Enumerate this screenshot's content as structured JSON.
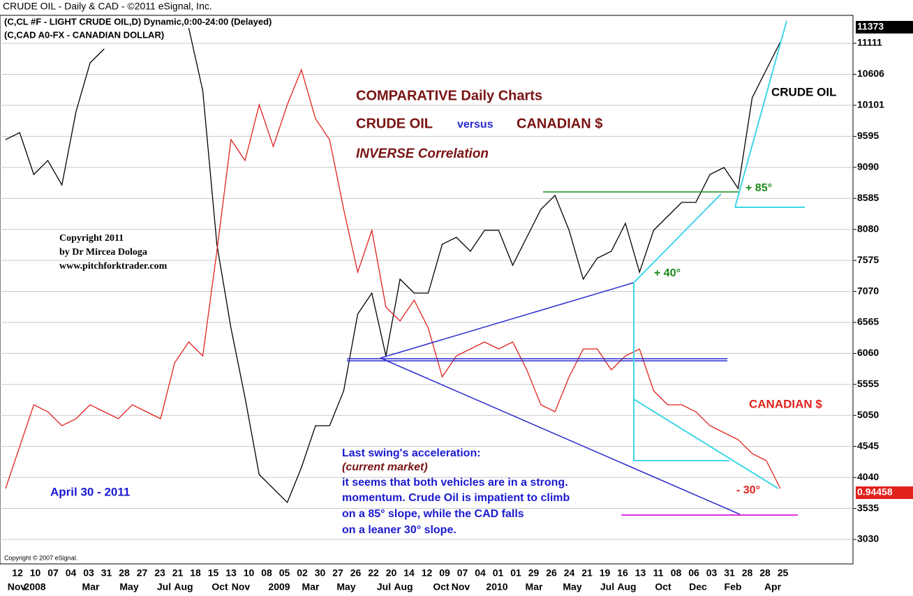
{
  "chart_data": {
    "type": "line",
    "header": "CRUDE OIL - Daily & CAD - ©2011 eSignal, Inc.",
    "series": [
      {
        "name": "(C,CL #F - LIGHT CRUDE OIL,D) Dynamic,0:00-24:00 (Delayed)",
        "color": "#000000",
        "values": [
          9542,
          9656,
          8974,
          9201,
          8804,
          9997,
          10793,
          11020,
          null,
          null,
          null,
          null,
          null,
          11361,
          10338,
          7838,
          6474,
          5337,
          4087,
          3860,
          3633,
          4200,
          4882,
          4882,
          5451,
          6701,
          7042,
          6019,
          7269,
          7042,
          7042,
          7838,
          7951,
          7724,
          8065,
          8065,
          7497,
          7951,
          8406,
          8633,
          8065,
          7269,
          7610,
          7724,
          8179,
          7383,
          8065,
          8292,
          8520,
          8520,
          8974,
          9088,
          8747,
          10224,
          10679,
          11134
        ]
      },
      {
        "name": "(C,CAD A0-FX - CANADIAN DOLLAR)",
        "color": "#e0221b",
        "values": [
          3860,
          4541,
          5223,
          5110,
          4882,
          4996,
          5223,
          5110,
          4996,
          5223,
          5110,
          4996,
          5905,
          6246,
          6019,
          7724,
          9542,
          9201,
          10111,
          9429,
          10111,
          10679,
          9883,
          9542,
          8406,
          7383,
          8065,
          6815,
          6587,
          6928,
          6474,
          5678,
          6019,
          6133,
          6246,
          6133,
          6246,
          5792,
          5223,
          5110,
          5678,
          6133,
          6133,
          5792,
          6019,
          6133,
          5451,
          5223,
          5223,
          5110,
          4882,
          4769,
          4655,
          4428,
          4314,
          3860
        ]
      }
    ],
    "last_values": [
      11373,
      0.94458
    ],
    "ylim": [
      2632,
      11566
    ],
    "yticks": [
      3030,
      3535,
      4040,
      4545,
      5050,
      5555,
      6060,
      6565,
      7070,
      7575,
      8080,
      8585,
      9090,
      9595,
      10101,
      10606,
      11111
    ],
    "grid": true,
    "x_day_labels": [
      "12",
      "10",
      "07",
      "04",
      "03",
      "31",
      "28",
      "27",
      "23",
      "21",
      "18",
      "15",
      "13",
      "10",
      "08",
      "05",
      "02",
      "30",
      "27",
      "26",
      "22",
      "20",
      "14",
      "12",
      "09",
      "07",
      "04",
      "01",
      "01",
      "29",
      "26",
      "24",
      "21",
      "19",
      "16",
      "13",
      "11",
      "08",
      "06",
      "03",
      "31",
      "28",
      "28",
      "25"
    ],
    "x_period_labels": [
      "Nov",
      "2008",
      "Mar",
      "May",
      "Jul",
      "Aug",
      "Oct",
      "Nov",
      "2009",
      "Mar",
      "May",
      "Jul",
      "Aug",
      "Oct",
      "Nov",
      "2010",
      "Mar",
      "May",
      "Jul",
      "Aug",
      "Oct",
      "Dec",
      "Feb",
      "Apr"
    ],
    "annotations": {
      "title": "COMPARATIVE Daily Charts",
      "crude": "CRUDE OIL",
      "versus": "versus",
      "cad": "CANADIAN $",
      "inverse": "INVERSE Correlation",
      "copyright": [
        "Copyright 2011",
        "by Dr Mircea Dologa",
        "www.pitchforktrader.com"
      ],
      "date": "April 30 - 2011",
      "note": [
        "Last swing's acceleration:",
        "(current market)",
        "it seems that both vehicles are in a strong.",
        "momentum. Crude Oil is impatient to climb",
        "on a 85° slope, while the CAD falls",
        "on a leaner 30° slope."
      ],
      "crude_label": "CRUDE OIL",
      "cad_label": "CANADIAN $",
      "angle_85": "+ 85°",
      "angle_40": "+ 40°",
      "angle_30": "- 30°",
      "esignal": "Copyright © 2007 eSignal."
    }
  }
}
